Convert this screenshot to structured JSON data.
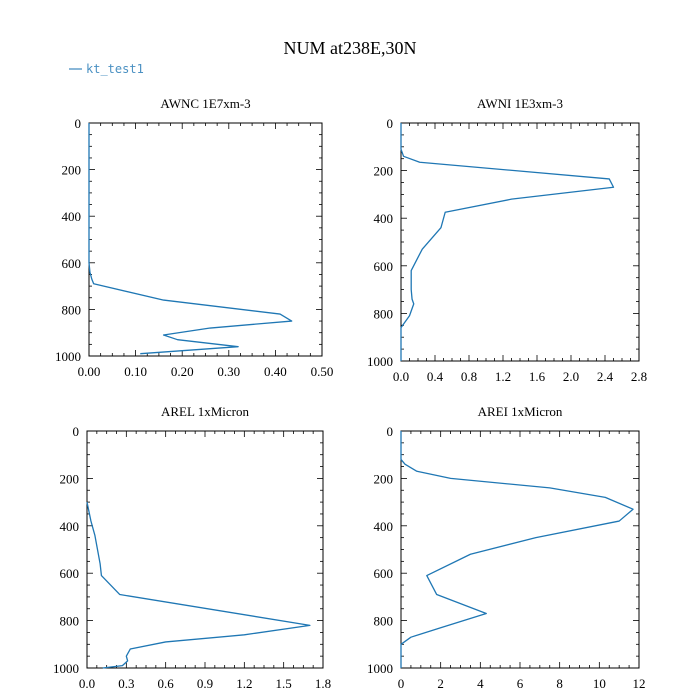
{
  "title": "NUM at238E,30N",
  "legend": {
    "label": "kt_test1",
    "color": "#4a90c2",
    "placement": "top-left"
  },
  "series_color": "#1f77b4",
  "chart_data": [
    {
      "type": "line",
      "title": "AWNC  1E7xm-3",
      "series_name": "kt_test1",
      "xlim": [
        0,
        0.5
      ],
      "ylim": [
        1000,
        0
      ],
      "x_ticks": [
        0,
        0.1,
        0.2,
        0.3,
        0.4,
        0.5
      ],
      "x_tick_labels": [
        "0.00",
        "0.10",
        "0.20",
        "0.30",
        "0.40",
        "0.50"
      ],
      "y_ticks": [
        0,
        200,
        400,
        600,
        800,
        1000
      ],
      "y_tick_labels": [
        "0",
        "200",
        "400",
        "600",
        "800",
        "1000"
      ],
      "x": [
        0,
        0,
        0,
        0.002,
        0.006,
        0.01,
        0.16,
        0.41,
        0.435,
        0.26,
        0.16,
        0.19,
        0.32,
        0.11
      ],
      "y": [
        0,
        400,
        600,
        640,
        670,
        690,
        760,
        820,
        850,
        880,
        910,
        930,
        960,
        990
      ]
    },
    {
      "type": "line",
      "title": "AWNI  1E3xm-3",
      "series_name": "kt_test1",
      "xlim": [
        0,
        2.8
      ],
      "ylim": [
        1000,
        0
      ],
      "x_ticks": [
        0,
        0.4,
        0.8,
        1.2,
        1.6,
        2.0,
        2.4,
        2.8
      ],
      "x_tick_labels": [
        "0.0",
        "0.4",
        "0.8",
        "1.2",
        "1.6",
        "2.0",
        "2.4",
        "2.8"
      ],
      "y_ticks": [
        0,
        200,
        400,
        600,
        800,
        1000
      ],
      "y_tick_labels": [
        "0",
        "200",
        "400",
        "600",
        "800",
        "1000"
      ],
      "x": [
        0,
        0,
        0.03,
        0.22,
        2.45,
        2.5,
        1.3,
        0.52,
        0.47,
        0.25,
        0.12,
        0.12,
        0.13,
        0.15,
        0.1,
        0,
        0
      ],
      "y": [
        0,
        110,
        140,
        165,
        235,
        270,
        320,
        375,
        440,
        530,
        620,
        700,
        740,
        760,
        810,
        860,
        1000
      ]
    },
    {
      "type": "line",
      "title": "AREL  1xMicron",
      "series_name": "kt_test1",
      "xlim": [
        0,
        1.8
      ],
      "ylim": [
        1000,
        0
      ],
      "x_ticks": [
        0,
        0.3,
        0.6,
        0.9,
        1.2,
        1.5,
        1.8
      ],
      "x_tick_labels": [
        "0.0",
        "0.3",
        "0.6",
        "0.9",
        "1.2",
        "1.5",
        "1.8"
      ],
      "y_ticks": [
        0,
        200,
        400,
        600,
        800,
        1000
      ],
      "y_tick_labels": [
        "0",
        "200",
        "400",
        "600",
        "800",
        "1000"
      ],
      "x": [
        0,
        0.03,
        0.06,
        0.08,
        0.1,
        0.11,
        0.25,
        1.7,
        1.2,
        0.6,
        0.33,
        0.3,
        0.31,
        0.27,
        0.12
      ],
      "y": [
        300,
        380,
        440,
        500,
        560,
        610,
        690,
        820,
        860,
        890,
        920,
        950,
        970,
        990,
        1000
      ]
    },
    {
      "type": "line",
      "title": "AREI  1xMicron",
      "series_name": "kt_test1",
      "xlim": [
        0,
        12
      ],
      "ylim": [
        1000,
        0
      ],
      "x_ticks": [
        0,
        2,
        4,
        6,
        8,
        10,
        12
      ],
      "x_tick_labels": [
        "0",
        "2",
        "4",
        "6",
        "8",
        "10",
        "12"
      ],
      "y_ticks": [
        0,
        200,
        400,
        600,
        800,
        1000
      ],
      "y_tick_labels": [
        "0",
        "200",
        "400",
        "600",
        "800",
        "1000"
      ],
      "x": [
        0,
        0,
        0.2,
        0.8,
        2.5,
        7.5,
        10.3,
        11.7,
        11.0,
        6.8,
        3.5,
        1.3,
        1.8,
        4.3,
        2.0,
        0.5,
        0,
        0
      ],
      "y": [
        0,
        120,
        140,
        170,
        200,
        240,
        280,
        330,
        380,
        450,
        520,
        610,
        690,
        770,
        830,
        870,
        900,
        1000
      ]
    }
  ]
}
